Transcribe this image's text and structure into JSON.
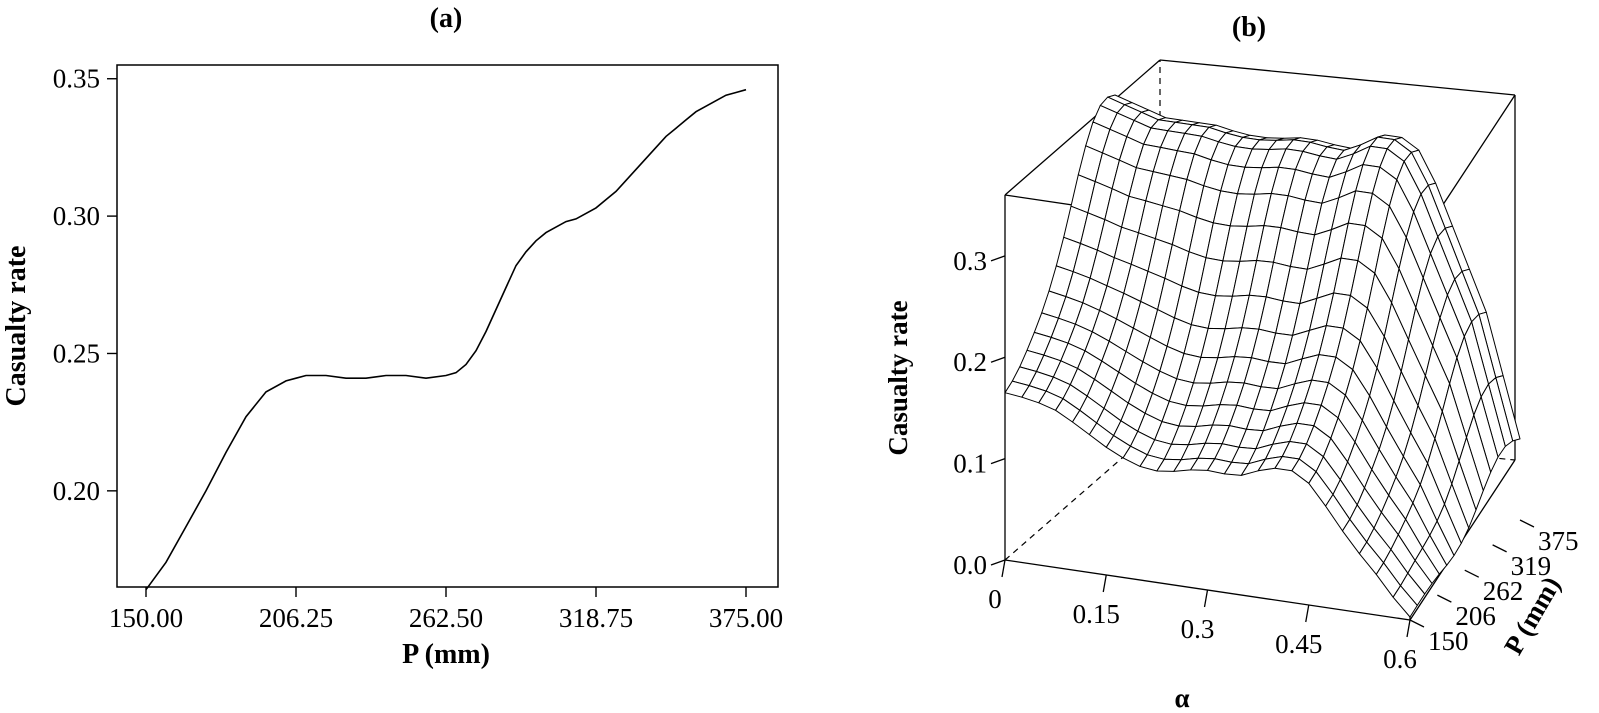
{
  "chart_data": [
    {
      "panel_label": "(a)",
      "type": "line",
      "xlabel": "P (mm)",
      "ylabel": "Casualty rate",
      "xlim": [
        150,
        375
      ],
      "ylim": [
        0.165,
        0.355
      ],
      "xticks": [
        "150.00",
        "206.25",
        "262.50",
        "318.75",
        "375.00"
      ],
      "yticks": [
        "0.20",
        "0.25",
        "0.30",
        "0.35"
      ],
      "grid": false,
      "series": [
        {
          "x": [
            150,
            157.5,
            165,
            172.5,
            180,
            187.5,
            195,
            202.5,
            206.25,
            210,
            217.5,
            225,
            232.5,
            240,
            247.5,
            255,
            262.5,
            266.25,
            270,
            273.75,
            277.5,
            281.25,
            285,
            288.75,
            292.5,
            296.25,
            300,
            303.75,
            307.5,
            311.25,
            315,
            318.75,
            322.5,
            326.25,
            330,
            333.75,
            337.5,
            341.25,
            345,
            348.75,
            352.5,
            356.25,
            360,
            363.75,
            367.5,
            371.25,
            375
          ],
          "y": [
            0.164,
            0.174,
            0.187,
            0.2,
            0.214,
            0.227,
            0.236,
            0.24,
            0.241,
            0.242,
            0.242,
            0.241,
            0.241,
            0.242,
            0.242,
            0.241,
            0.242,
            0.243,
            0.246,
            0.251,
            0.258,
            0.266,
            0.274,
            0.282,
            0.287,
            0.291,
            0.294,
            0.296,
            0.298,
            0.299,
            0.301,
            0.303,
            0.306,
            0.309,
            0.313,
            0.317,
            0.321,
            0.325,
            0.329,
            0.332,
            0.335,
            0.338,
            0.34,
            0.342,
            0.344,
            0.345,
            0.346
          ]
        }
      ]
    },
    {
      "panel_label": "(b)",
      "type": "surface",
      "xlabel": "α",
      "ylabel": "P (mm)",
      "zlabel": "Casualty rate",
      "xticks": [
        "0",
        "0.15",
        "0.3",
        "0.45",
        "0.6"
      ],
      "yticks": [
        "150",
        "206",
        "262",
        "319",
        "375"
      ],
      "zticks": [
        "0.0",
        "0.1",
        "0.2",
        "0.3"
      ],
      "xlim": [
        0,
        0.6
      ],
      "ylim": [
        150,
        375
      ],
      "zlim": [
        0,
        0.36
      ],
      "alpha_values": [
        0,
        0.025,
        0.05,
        0.075,
        0.1,
        0.125,
        0.15,
        0.175,
        0.2,
        0.225,
        0.25,
        0.275,
        0.3,
        0.325,
        0.35,
        0.375,
        0.4,
        0.425,
        0.45,
        0.475,
        0.5,
        0.525,
        0.55,
        0.575,
        0.6
      ],
      "casualty_rate_at_P150": [
        0.165,
        0.163,
        0.16,
        0.155,
        0.146,
        0.136,
        0.126,
        0.118,
        0.112,
        0.11,
        0.112,
        0.116,
        0.118,
        0.117,
        0.118,
        0.125,
        0.13,
        0.13,
        0.12,
        0.1,
        0.078,
        0.058,
        0.04,
        0.02,
        0.003
      ],
      "casualty_rate_at_P375": [
        0.36,
        0.355,
        0.35,
        0.345,
        0.345,
        0.345,
        0.345,
        0.342,
        0.34,
        0.34,
        0.342,
        0.345,
        0.345,
        0.343,
        0.342,
        0.35,
        0.36,
        0.36,
        0.35,
        0.32,
        0.28,
        0.24,
        0.2,
        0.14,
        0.08
      ]
    }
  ]
}
